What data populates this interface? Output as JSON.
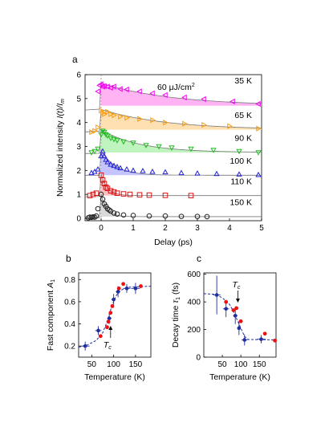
{
  "figure": {
    "panel_labels": [
      "a",
      "b",
      "c"
    ]
  },
  "chart_data": [
    {
      "type": "scatter",
      "panel": "a",
      "xlabel": "Delay (ps)",
      "ylabel": "Normalized intensity I(t)/I_m",
      "ylabel_parts": {
        "main": "Normalized intensity ",
        "sym": "I(t)/I",
        "sub": "m"
      },
      "xlim": [
        -0.5,
        5
      ],
      "ylim": [
        -0.1,
        6
      ],
      "xticks": [
        0,
        1,
        2,
        3,
        4,
        5
      ],
      "yticks": [
        0,
        1,
        2,
        3,
        4,
        5,
        6
      ],
      "annotation": {
        "text": "60 μJ/cm",
        "sup": "2"
      },
      "series": [
        {
          "name": "35 K",
          "offset": 4.5,
          "color": "#ee00ee",
          "fill": "#ff99ee",
          "marker": "triangle-left",
          "x": [
            -0.1,
            -0.05,
            0.0,
            0.05,
            0.1,
            0.2,
            0.3,
            0.4,
            0.6,
            0.8,
            1.2,
            1.6,
            2.0,
            2.6,
            3.2,
            4.1,
            4.9
          ],
          "y": [
            5.3,
            5.55,
            5.6,
            5.5,
            5.52,
            5.5,
            5.45,
            5.5,
            5.4,
            5.38,
            5.3,
            5.22,
            5.15,
            5.05,
            4.98,
            4.88,
            4.78
          ],
          "peak": 5.65,
          "asym": 4.7,
          "tau": 2.2
        },
        {
          "name": "65 K",
          "offset": 3.6,
          "color": "#ff9900",
          "fill": "#ffd699",
          "marker": "triangle-right",
          "x": [
            -0.3,
            -0.2,
            -0.1,
            0.0,
            0.05,
            0.1,
            0.2,
            0.3,
            0.4,
            0.6,
            0.8,
            1.2,
            1.6,
            2.0,
            2.6,
            3.2,
            4.0,
            4.9
          ],
          "y": [
            3.6,
            3.65,
            3.8,
            4.5,
            4.4,
            4.35,
            4.45,
            4.35,
            4.3,
            4.25,
            4.2,
            4.15,
            4.1,
            4.0,
            3.95,
            3.9,
            3.85,
            3.75
          ],
          "peak": 4.55,
          "asym": 3.7,
          "tau": 2.0
        },
        {
          "name": "90 K",
          "offset": 2.7,
          "color": "#22bb22",
          "fill": "#aaf0aa",
          "marker": "triangle-down",
          "x": [
            -0.3,
            -0.2,
            -0.1,
            0.0,
            0.05,
            0.1,
            0.15,
            0.2,
            0.3,
            0.4,
            0.5,
            0.7,
            1.0,
            1.4,
            1.8,
            2.2,
            2.8,
            3.5,
            4.3,
            4.9
          ],
          "y": [
            2.75,
            2.8,
            2.9,
            3.5,
            3.65,
            3.6,
            3.5,
            3.45,
            3.35,
            3.3,
            3.25,
            3.2,
            3.15,
            3.05,
            3.0,
            2.95,
            2.9,
            2.85,
            2.8,
            2.75
          ],
          "peak": 3.7,
          "asym": 2.75,
          "tau": 1.2
        },
        {
          "name": "100 K",
          "offset": 1.8,
          "color": "#2222dd",
          "fill": "#b0b0ff",
          "marker": "triangle-up",
          "x": [
            -0.3,
            -0.2,
            -0.1,
            0.0,
            0.05,
            0.1,
            0.15,
            0.2,
            0.3,
            0.4,
            0.5,
            0.6,
            0.8,
            1.0,
            1.3,
            1.6,
            2.0,
            2.5,
            3.0,
            3.6,
            4.3,
            4.9
          ],
          "y": [
            1.9,
            1.95,
            2.05,
            2.6,
            2.8,
            2.6,
            2.45,
            2.35,
            2.25,
            2.2,
            2.15,
            2.1,
            2.05,
            2.0,
            1.98,
            1.95,
            1.93,
            1.9,
            1.88,
            1.86,
            1.84,
            1.82
          ],
          "peak": 2.85,
          "asym": 1.8,
          "tau": 0.45
        },
        {
          "name": "110 K",
          "offset": 0.9,
          "color": "#dd1111",
          "fill": "#ffaaaa",
          "marker": "square",
          "x": [
            -0.35,
            -0.25,
            -0.15,
            0.0,
            0.05,
            0.1,
            0.15,
            0.2,
            0.3,
            0.4,
            0.5,
            0.7,
            0.9,
            1.2,
            1.5,
            2.0,
            2.8
          ],
          "y": [
            0.95,
            1.0,
            1.05,
            1.8,
            1.6,
            1.45,
            1.3,
            1.25,
            1.15,
            1.1,
            1.05,
            1.02,
            1.0,
            0.98,
            0.97,
            0.96,
            0.95
          ],
          "peak": 1.85,
          "asym": 0.95,
          "tau": 0.2
        },
        {
          "name": "150 K",
          "offset": 0.0,
          "color": "#222222",
          "fill": "#cccccc",
          "marker": "circle",
          "x": [
            -0.4,
            -0.35,
            -0.3,
            -0.25,
            -0.2,
            -0.15,
            -0.1,
            0.0,
            0.05,
            0.1,
            0.15,
            0.2,
            0.25,
            0.3,
            0.4,
            0.5,
            0.7,
            1.0,
            1.5,
            2.0,
            2.5,
            3.0,
            3.3
          ],
          "y": [
            0.02,
            0.05,
            0.04,
            0.06,
            0.05,
            0.1,
            0.4,
            1.0,
            0.8,
            0.6,
            0.5,
            0.4,
            0.35,
            0.3,
            0.22,
            0.18,
            0.14,
            0.12,
            0.1,
            0.1,
            0.08,
            0.08,
            0.07
          ],
          "peak": 1.0,
          "asym": 0.07,
          "tau": 0.18
        }
      ]
    },
    {
      "type": "scatter",
      "panel": "b",
      "xlabel": "Temperature (K)",
      "ylabel": "Fast component A1",
      "ylabel_parts": {
        "main": "Fast component ",
        "sym": "A",
        "sub": "1"
      },
      "xlim": [
        20,
        185
      ],
      "ylim": [
        0.1,
        0.86
      ],
      "xticks": [
        50,
        100,
        150
      ],
      "yticks": [
        0.2,
        0.4,
        0.6,
        0.8
      ],
      "annotation": {
        "text": "T",
        "sub": "c",
        "x": 93
      },
      "series": [
        {
          "name": "",
          "color": "#1f2f9f",
          "marker": "circle",
          "x": [
            35,
            65,
            90,
            100,
            110,
            130,
            150
          ],
          "y": [
            0.2,
            0.34,
            0.45,
            0.62,
            0.69,
            0.72,
            0.72
          ],
          "xerr": [
            10,
            7,
            5,
            5,
            5,
            8,
            10
          ],
          "yerr": [
            0.04,
            0.04,
            0.05,
            0.05,
            0.05,
            0.04,
            0.05
          ]
        },
        {
          "name": "",
          "color": "#ee1111",
          "marker": "dot",
          "x": [
            70,
            85,
            88,
            93,
            97,
            112,
            122,
            162
          ],
          "y": [
            0.29,
            0.37,
            0.42,
            0.5,
            0.56,
            0.72,
            0.76,
            0.74
          ]
        }
      ],
      "fit": {
        "x": [
          20,
          40,
          60,
          75,
          85,
          95,
          105,
          115,
          130,
          185
        ],
        "y": [
          0.19,
          0.21,
          0.25,
          0.32,
          0.42,
          0.55,
          0.65,
          0.7,
          0.73,
          0.74
        ]
      }
    },
    {
      "type": "scatter",
      "panel": "c",
      "xlabel": "Temperature (K)",
      "ylabel": "Decay time τ1 (fs)",
      "ylabel_parts": {
        "main": "Decay time ",
        "sym": "τ",
        "sub": "1",
        "unit": " (fs)"
      },
      "xlim": [
        0,
        195
      ],
      "ylim": [
        0,
        610
      ],
      "xticks": [
        50,
        100,
        150
      ],
      "yticks": [
        0,
        200,
        400,
        600
      ],
      "annotation": {
        "text": "T",
        "sub": "c",
        "x": 92
      },
      "series": [
        {
          "name": "",
          "color": "#1f2f9f",
          "marker": "circle",
          "x": [
            35,
            60,
            85,
            95,
            110,
            155
          ],
          "y": [
            450,
            350,
            300,
            210,
            125,
            130
          ],
          "xerr": [
            10,
            8,
            6,
            5,
            8,
            12
          ],
          "yerr": [
            140,
            60,
            60,
            50,
            40,
            30
          ]
        },
        {
          "name": "",
          "color": "#ee1111",
          "marker": "dot",
          "x": [
            60,
            80,
            88,
            100,
            165,
            192
          ],
          "y": [
            400,
            340,
            355,
            260,
            170,
            120
          ]
        }
      ],
      "fit": {
        "x": [
          0,
          30,
          50,
          70,
          80,
          90,
          100,
          110,
          120,
          195
        ],
        "y": [
          460,
          455,
          430,
          380,
          330,
          270,
          210,
          150,
          128,
          125
        ]
      }
    }
  ]
}
